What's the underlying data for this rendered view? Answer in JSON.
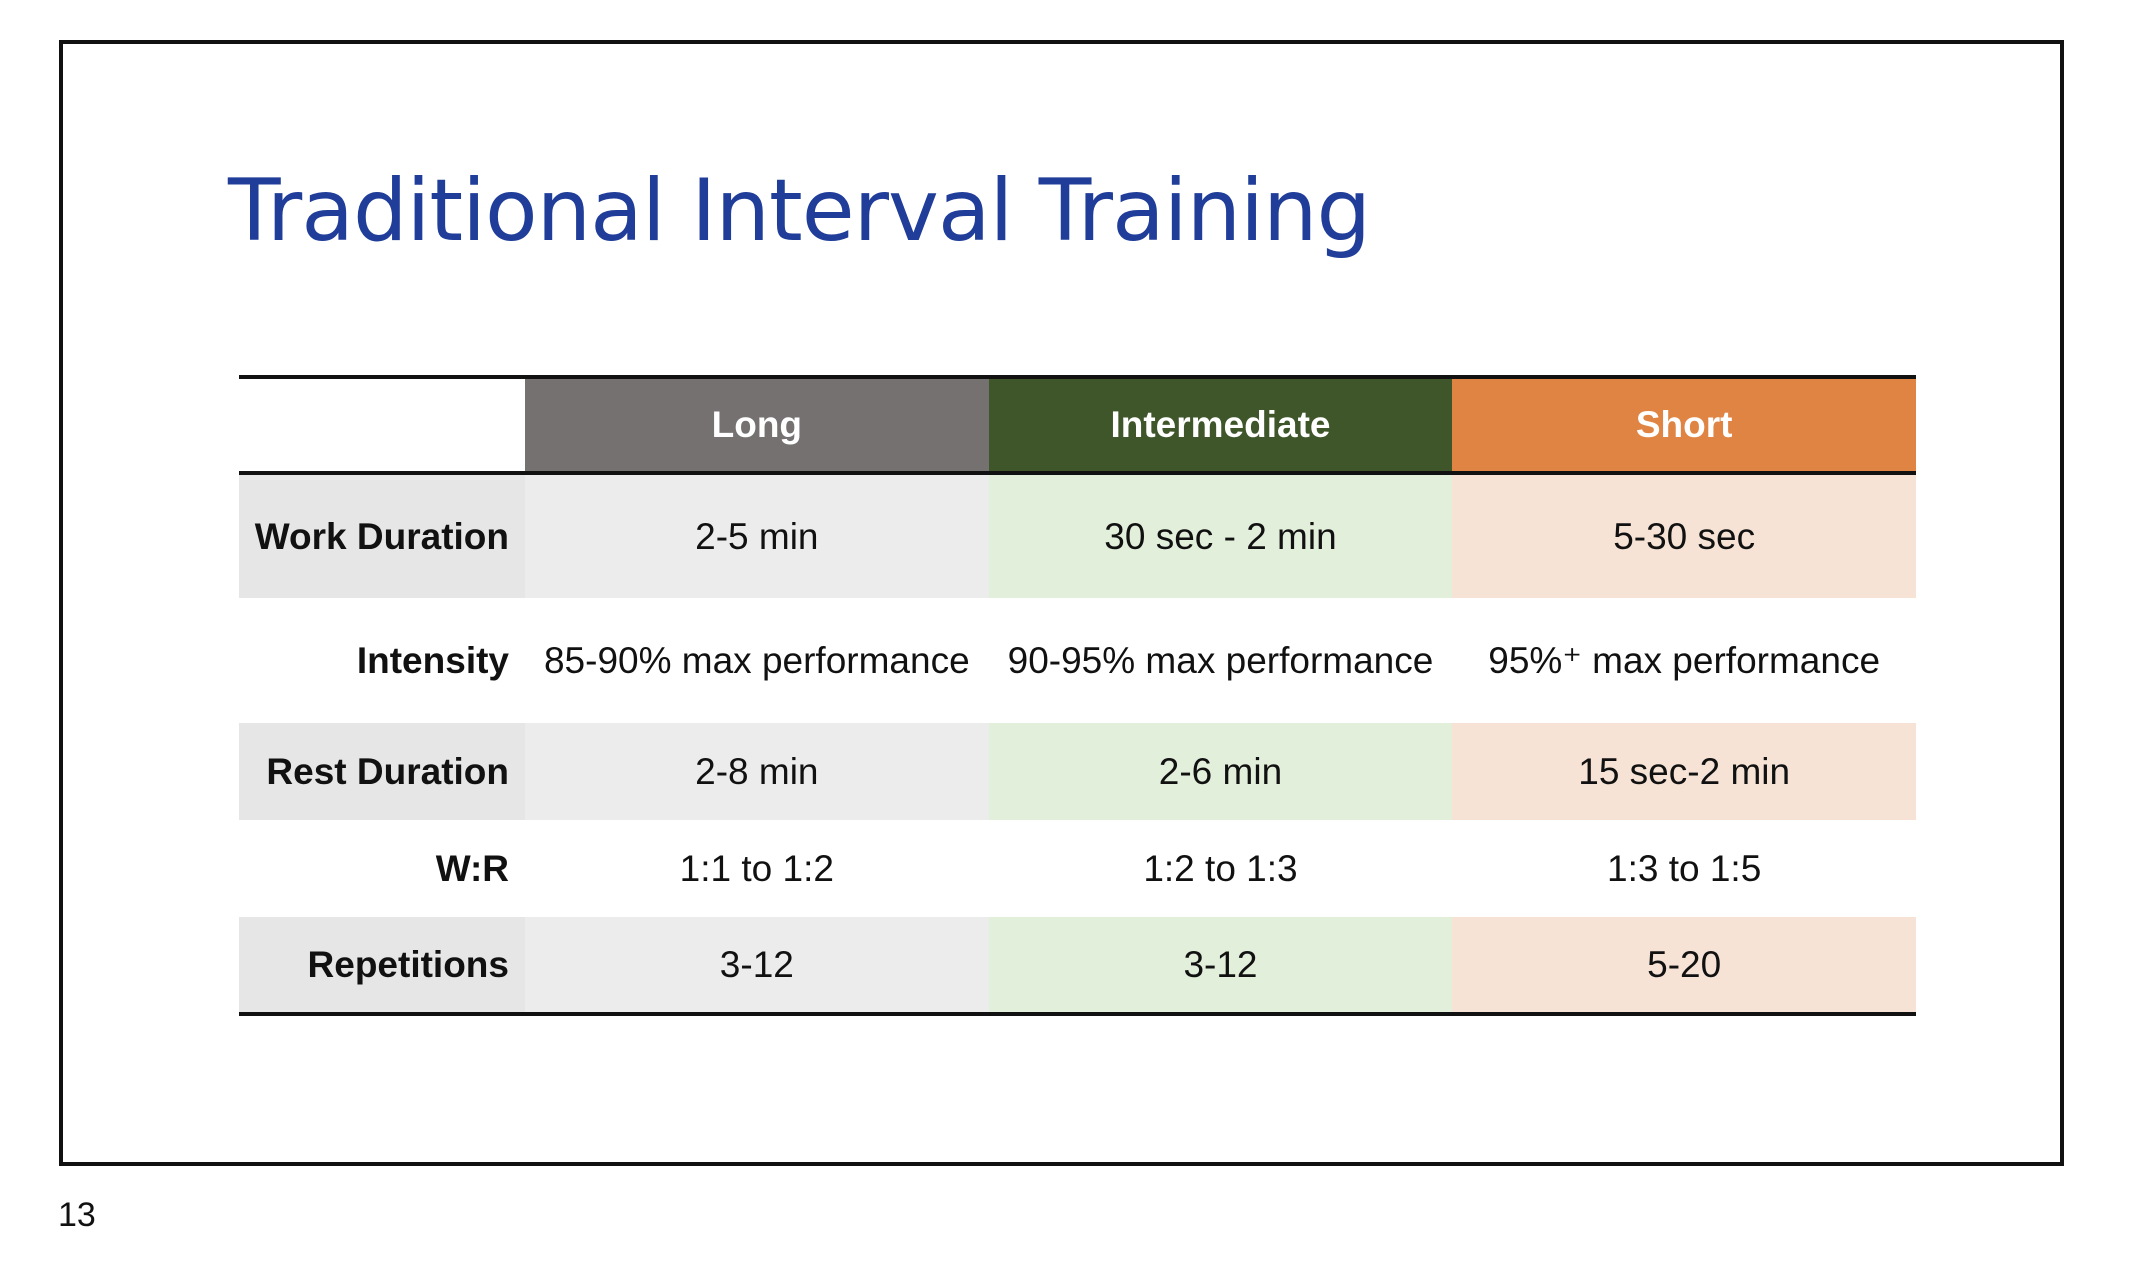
{
  "slide": {
    "title": "Traditional Interval Training",
    "page_number": "13"
  },
  "table": {
    "columns": [
      {
        "label": "Long",
        "color": "#767171"
      },
      {
        "label": "Intermediate",
        "color": "#3e5629"
      },
      {
        "label": "Short",
        "color": "#e08444"
      }
    ],
    "rows": [
      {
        "label": "Work Duration",
        "values": [
          "2-5 min",
          "30 sec - 2 min",
          "5-30 sec"
        ]
      },
      {
        "label": "Intensity",
        "values": [
          "85-90% max performance",
          "90-95% max performance",
          "95%⁺ max performance"
        ]
      },
      {
        "label": "Rest Duration",
        "values": [
          "2-8 min",
          "2-6 min",
          "15 sec-2 min"
        ]
      },
      {
        "label": "W:R",
        "values": [
          "1:1 to 1:2",
          "1:2 to 1:3",
          "1:3 to 1:5"
        ]
      },
      {
        "label": "Repetitions",
        "values": [
          "3-12",
          "3-12",
          "5-20"
        ]
      }
    ]
  },
  "colors": {
    "title": "#1f3d99",
    "shade_label": "#e6e6e6",
    "shade_long": "#ececec",
    "shade_intermediate": "#e2efdb",
    "shade_short": "#f6e3d6"
  }
}
